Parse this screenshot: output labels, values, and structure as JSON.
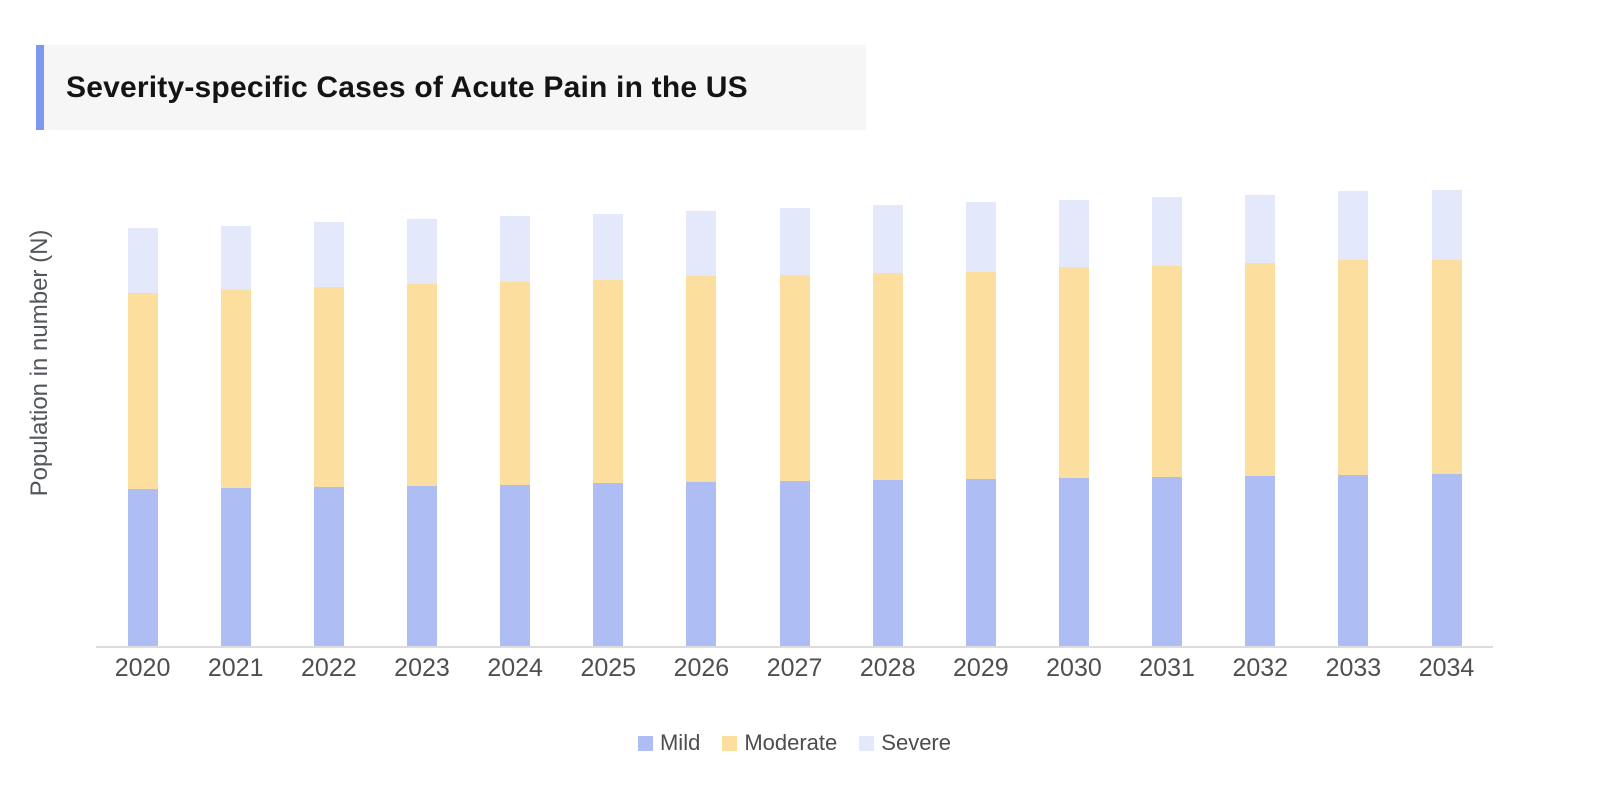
{
  "title": {
    "text": "Severity-specific Cases of Acute Pain in the US"
  },
  "colors": {
    "title_accent": "#7c97ee",
    "title_background": "#f6f6f6",
    "axis_line": "#dcdcdc",
    "tick_label_text": "#4f4f4f",
    "legend_text": "#4d4d4d",
    "y_axis_label_text": "#53575c",
    "mild": "#aebef5",
    "moderate": "#fcdf9e",
    "severe": "#e3e8fb"
  },
  "legend": {
    "items": [
      {
        "label": "Mild",
        "color": "#aebef5"
      },
      {
        "label": "Moderate",
        "color": "#fcdf9e"
      },
      {
        "label": "Severe",
        "color": "#e3e8fb"
      }
    ]
  },
  "chart_data": {
    "type": "bar",
    "stacked": true,
    "title": "Severity-specific Cases of Acute Pain in the US",
    "xlabel": "",
    "ylabel": "Population in number (N)",
    "categories": [
      "2020",
      "2021",
      "2022",
      "2023",
      "2024",
      "2025",
      "2026",
      "2027",
      "2028",
      "2029",
      "2030",
      "2031",
      "2032",
      "2033",
      "2034"
    ],
    "series": [
      {
        "name": "Mild",
        "color": "#aebef5",
        "values": [
          157,
          158,
          159,
          160,
          161,
          163,
          164,
          165,
          166,
          167,
          168,
          169,
          170,
          171,
          172
        ]
      },
      {
        "name": "Moderate",
        "color": "#fcdf9e",
        "values": [
          196,
          198,
          200,
          202,
          203,
          203,
          206,
          206,
          207,
          207,
          211,
          211,
          213,
          215,
          214
        ]
      },
      {
        "name": "Severe",
        "color": "#e3e8fb",
        "values": [
          65,
          64,
          65,
          65,
          66,
          66,
          65,
          67,
          68,
          70,
          67,
          69,
          68,
          69,
          70
        ]
      }
    ],
    "totals": [
      418,
      420,
      424,
      427,
      430,
      432,
      435,
      438,
      441,
      444,
      446,
      449,
      451,
      455,
      456
    ],
    "ylim": [
      0,
      470
    ],
    "y_tick_labels": [],
    "grid": false,
    "legend_position": "bottom"
  }
}
